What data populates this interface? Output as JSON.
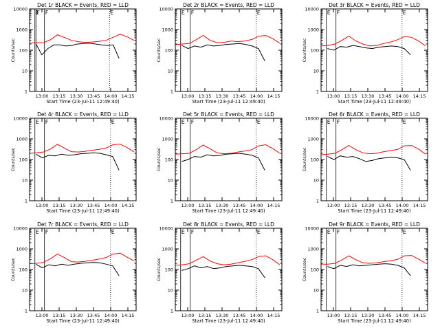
{
  "colors": {
    "events": "#000000",
    "lld": "#ff0000",
    "background": "#ffffff"
  },
  "chart_data": [
    {
      "type": "line",
      "title": "Det 1r  BLACK = Events, RED = LLD",
      "ylabel": "Counts/sec",
      "xlabel": "Start Time (23-Jul-11 12:49:40)",
      "x_ticks": [
        "13:00",
        "13:15",
        "13:30",
        "13:45",
        "14:00",
        "14:15"
      ],
      "y_ticks": [
        "1",
        "10",
        "100",
        "1000",
        "10000"
      ],
      "ylim": [
        1,
        10000
      ],
      "yscale": "log",
      "markers": [
        {
          "label": "E",
          "x": 0.05
        },
        {
          "label": "F",
          "x": 0.14
        },
        {
          "label": "E",
          "x": 0.75
        },
        {
          "label": "F",
          "x": 0.06
        }
      ],
      "series": [
        {
          "values": [
            220,
            230,
            230,
            320,
            560,
            420,
            300,
            260,
            240,
            250,
            270,
            300,
            420,
            600,
            450,
            300
          ]
        },
        {
          "values": [
            200,
            60,
            120,
            180,
            180,
            160,
            170,
            200,
            210,
            220,
            200,
            180,
            170,
            180,
            40
          ]
        }
      ]
    },
    {
      "type": "line",
      "title": "Det 2r  BLACK = Events, RED = LLD",
      "ylabel": "Counts/sec",
      "xlabel": "Start Time (23-Jul-11 12:49:40)",
      "x_ticks": [
        "13:00",
        "13:15",
        "13:30",
        "13:45",
        "14:00",
        "14:15"
      ],
      "y_ticks": [
        "1",
        "10",
        "100",
        "1000",
        "10000"
      ],
      "ylim": [
        1,
        10000
      ],
      "yscale": "log",
      "markers": [
        {
          "label": "E",
          "x": 0.05
        },
        {
          "label": "F",
          "x": 0.14
        },
        {
          "label": "E",
          "x": 0.76
        }
      ],
      "series": [
        {
          "values": [
            180,
            200,
            210,
            320,
            520,
            300,
            230,
            240,
            280,
            260,
            280,
            330,
            480,
            520,
            360,
            220
          ]
        },
        {
          "values": [
            170,
            120,
            160,
            140,
            180,
            160,
            170,
            190,
            200,
            210,
            190,
            160,
            120,
            30
          ]
        }
      ]
    },
    {
      "type": "line",
      "title": "Det 3r  BLACK = Events, RED = LLD",
      "ylabel": "Counts/sec",
      "xlabel": "Start Time (23-Jul-11 12:49:40)",
      "x_ticks": [
        "13:00",
        "13:15",
        "13:30",
        "13:45",
        "14:00",
        "14:15"
      ],
      "y_ticks": [
        "1",
        "10",
        "100",
        "1000",
        "10000"
      ],
      "ylim": [
        1,
        10000
      ],
      "yscale": "log",
      "markers": [
        {
          "label": "E",
          "x": 0.05
        },
        {
          "label": "F",
          "x": 0.14
        },
        {
          "label": "E",
          "x": 0.76
        }
      ],
      "series": [
        {
          "values": [
            160,
            170,
            200,
            300,
            480,
            280,
            200,
            160,
            170,
            210,
            250,
            320,
            460,
            420,
            280,
            160
          ]
        },
        {
          "values": [
            120,
            100,
            150,
            140,
            170,
            150,
            130,
            120,
            140,
            150,
            160,
            150,
            120,
            60
          ]
        }
      ]
    },
    {
      "type": "line",
      "title": "Det 4r  BLACK = Events, RED = LLD",
      "ylabel": "Counts/sec",
      "xlabel": "Start Time (23-Jul-11 12:49:40)",
      "x_ticks": [
        "13:00",
        "13:15",
        "13:30",
        "13:45",
        "14:00",
        "14:15"
      ],
      "y_ticks": [
        "1",
        "10",
        "100",
        "1000",
        "10000"
      ],
      "ylim": [
        1,
        10000
      ],
      "yscale": "log",
      "markers": [
        {
          "label": "E",
          "x": 0.05
        },
        {
          "label": "F",
          "x": 0.14
        },
        {
          "label": "E",
          "x": 0.76
        }
      ],
      "series": [
        {
          "values": [
            200,
            210,
            230,
            320,
            540,
            360,
            240,
            230,
            250,
            280,
            310,
            360,
            520,
            560,
            380,
            230
          ]
        },
        {
          "values": [
            180,
            120,
            160,
            150,
            180,
            160,
            170,
            190,
            200,
            210,
            200,
            170,
            140,
            30
          ]
        }
      ]
    },
    {
      "type": "line",
      "title": "Det 5r  BLACK = Events, RED = LLD",
      "ylabel": "Counts/sec",
      "xlabel": "Start Time (23-Jul-11 12:49:40)",
      "x_ticks": [
        "13:00",
        "13:15",
        "13:30",
        "13:45",
        "14:00",
        "14:15"
      ],
      "y_ticks": [
        "1",
        "10",
        "100",
        "1000",
        "10000"
      ],
      "ylim": [
        1,
        10000
      ],
      "yscale": "log",
      "markers": [
        {
          "label": "E",
          "x": 0.05
        },
        {
          "label": "F",
          "x": 0.14
        },
        {
          "label": "E",
          "x": 0.76
        }
      ],
      "series": [
        {
          "values": [
            180,
            190,
            200,
            300,
            500,
            330,
            210,
            190,
            200,
            230,
            260,
            300,
            460,
            520,
            340,
            200
          ]
        },
        {
          "values": [
            80,
            100,
            140,
            130,
            170,
            150,
            160,
            180,
            190,
            200,
            180,
            160,
            120,
            30
          ]
        }
      ]
    },
    {
      "type": "line",
      "title": "Det 6r  BLACK = Events, RED = LLD",
      "ylabel": "Counts/sec",
      "xlabel": "Start Time (23-Jul-11 12:49:40)",
      "x_ticks": [
        "13:00",
        "13:15",
        "13:30",
        "13:45",
        "14:00",
        "14:15"
      ],
      "y_ticks": [
        "1",
        "10",
        "100",
        "1000",
        "10000"
      ],
      "ylim": [
        1,
        10000
      ],
      "yscale": "log",
      "markers": [
        {
          "label": "E",
          "x": 0.05
        },
        {
          "label": "F",
          "x": 0.14
        },
        {
          "label": "E",
          "x": 0.76
        }
      ],
      "series": [
        {
          "values": [
            170,
            180,
            200,
            300,
            480,
            300,
            210,
            190,
            200,
            240,
            270,
            310,
            460,
            480,
            320,
            180
          ]
        },
        {
          "values": [
            140,
            100,
            150,
            130,
            140,
            110,
            80,
            90,
            110,
            120,
            130,
            120,
            100,
            30
          ]
        }
      ]
    },
    {
      "type": "line",
      "title": "Det 7r  BLACK = Events, RED = LLD",
      "ylabel": "Counts/sec",
      "xlabel": "Start Time (23-Jul-11 12:49:40)",
      "x_ticks": [
        "13:00",
        "13:15",
        "13:30",
        "13:45",
        "14:00",
        "14:15"
      ],
      "y_ticks": [
        "1",
        "10",
        "100",
        "1000",
        "10000"
      ],
      "ylim": [
        1,
        10000
      ],
      "yscale": "log",
      "markers": [
        {
          "label": "E",
          "x": 0.05
        },
        {
          "label": "F",
          "x": 0.14
        },
        {
          "label": "E",
          "x": 0.76
        }
      ],
      "series": [
        {
          "values": [
            190,
            200,
            220,
            330,
            560,
            380,
            240,
            230,
            250,
            280,
            320,
            380,
            560,
            620,
            400,
            260
          ]
        },
        {
          "values": [
            180,
            120,
            170,
            150,
            180,
            160,
            180,
            200,
            210,
            220,
            210,
            180,
            150,
            50
          ]
        }
      ]
    },
    {
      "type": "line",
      "title": "Det 8r  BLACK = Events, RED = LLD",
      "ylabel": "Counts/sec",
      "xlabel": "Start Time (23-Jul-11 12:49:40)",
      "x_ticks": [
        "13:00",
        "13:15",
        "13:30",
        "13:45",
        "14:00",
        "14:15"
      ],
      "y_ticks": [
        "1",
        "10",
        "100",
        "1000",
        "10000"
      ],
      "ylim": [
        1,
        10000
      ],
      "yscale": "log",
      "markers": [
        {
          "label": "E",
          "x": 0.05
        },
        {
          "label": "F",
          "x": 0.14
        },
        {
          "label": "E",
          "x": 0.76
        }
      ],
      "series": [
        {
          "values": [
            160,
            170,
            190,
            280,
            420,
            260,
            190,
            170,
            180,
            210,
            250,
            300,
            430,
            460,
            300,
            170
          ]
        },
        {
          "values": [
            90,
            110,
            150,
            120,
            140,
            110,
            120,
            140,
            150,
            160,
            150,
            140,
            110,
            40
          ]
        }
      ]
    },
    {
      "type": "line",
      "title": "Det 9r  BLACK = Events, RED = LLD",
      "ylabel": "Counts/sec",
      "xlabel": "Start Time (23-Jul-11 12:49:40)",
      "x_ticks": [
        "13:00",
        "13:15",
        "13:30",
        "13:45",
        "14:00",
        "14:15"
      ],
      "y_ticks": [
        "1",
        "10",
        "100",
        "1000",
        "10000"
      ],
      "ylim": [
        1,
        10000
      ],
      "yscale": "log",
      "markers": [
        {
          "label": "E",
          "x": 0.05
        },
        {
          "label": "F",
          "x": 0.14
        },
        {
          "label": "E",
          "x": 0.76
        }
      ],
      "series": [
        {
          "values": [
            180,
            180,
            200,
            290,
            460,
            300,
            210,
            200,
            210,
            240,
            270,
            310,
            460,
            480,
            320,
            200
          ]
        },
        {
          "values": [
            140,
            110,
            160,
            140,
            170,
            150,
            160,
            170,
            180,
            190,
            180,
            160,
            120,
            50
          ]
        }
      ]
    }
  ]
}
